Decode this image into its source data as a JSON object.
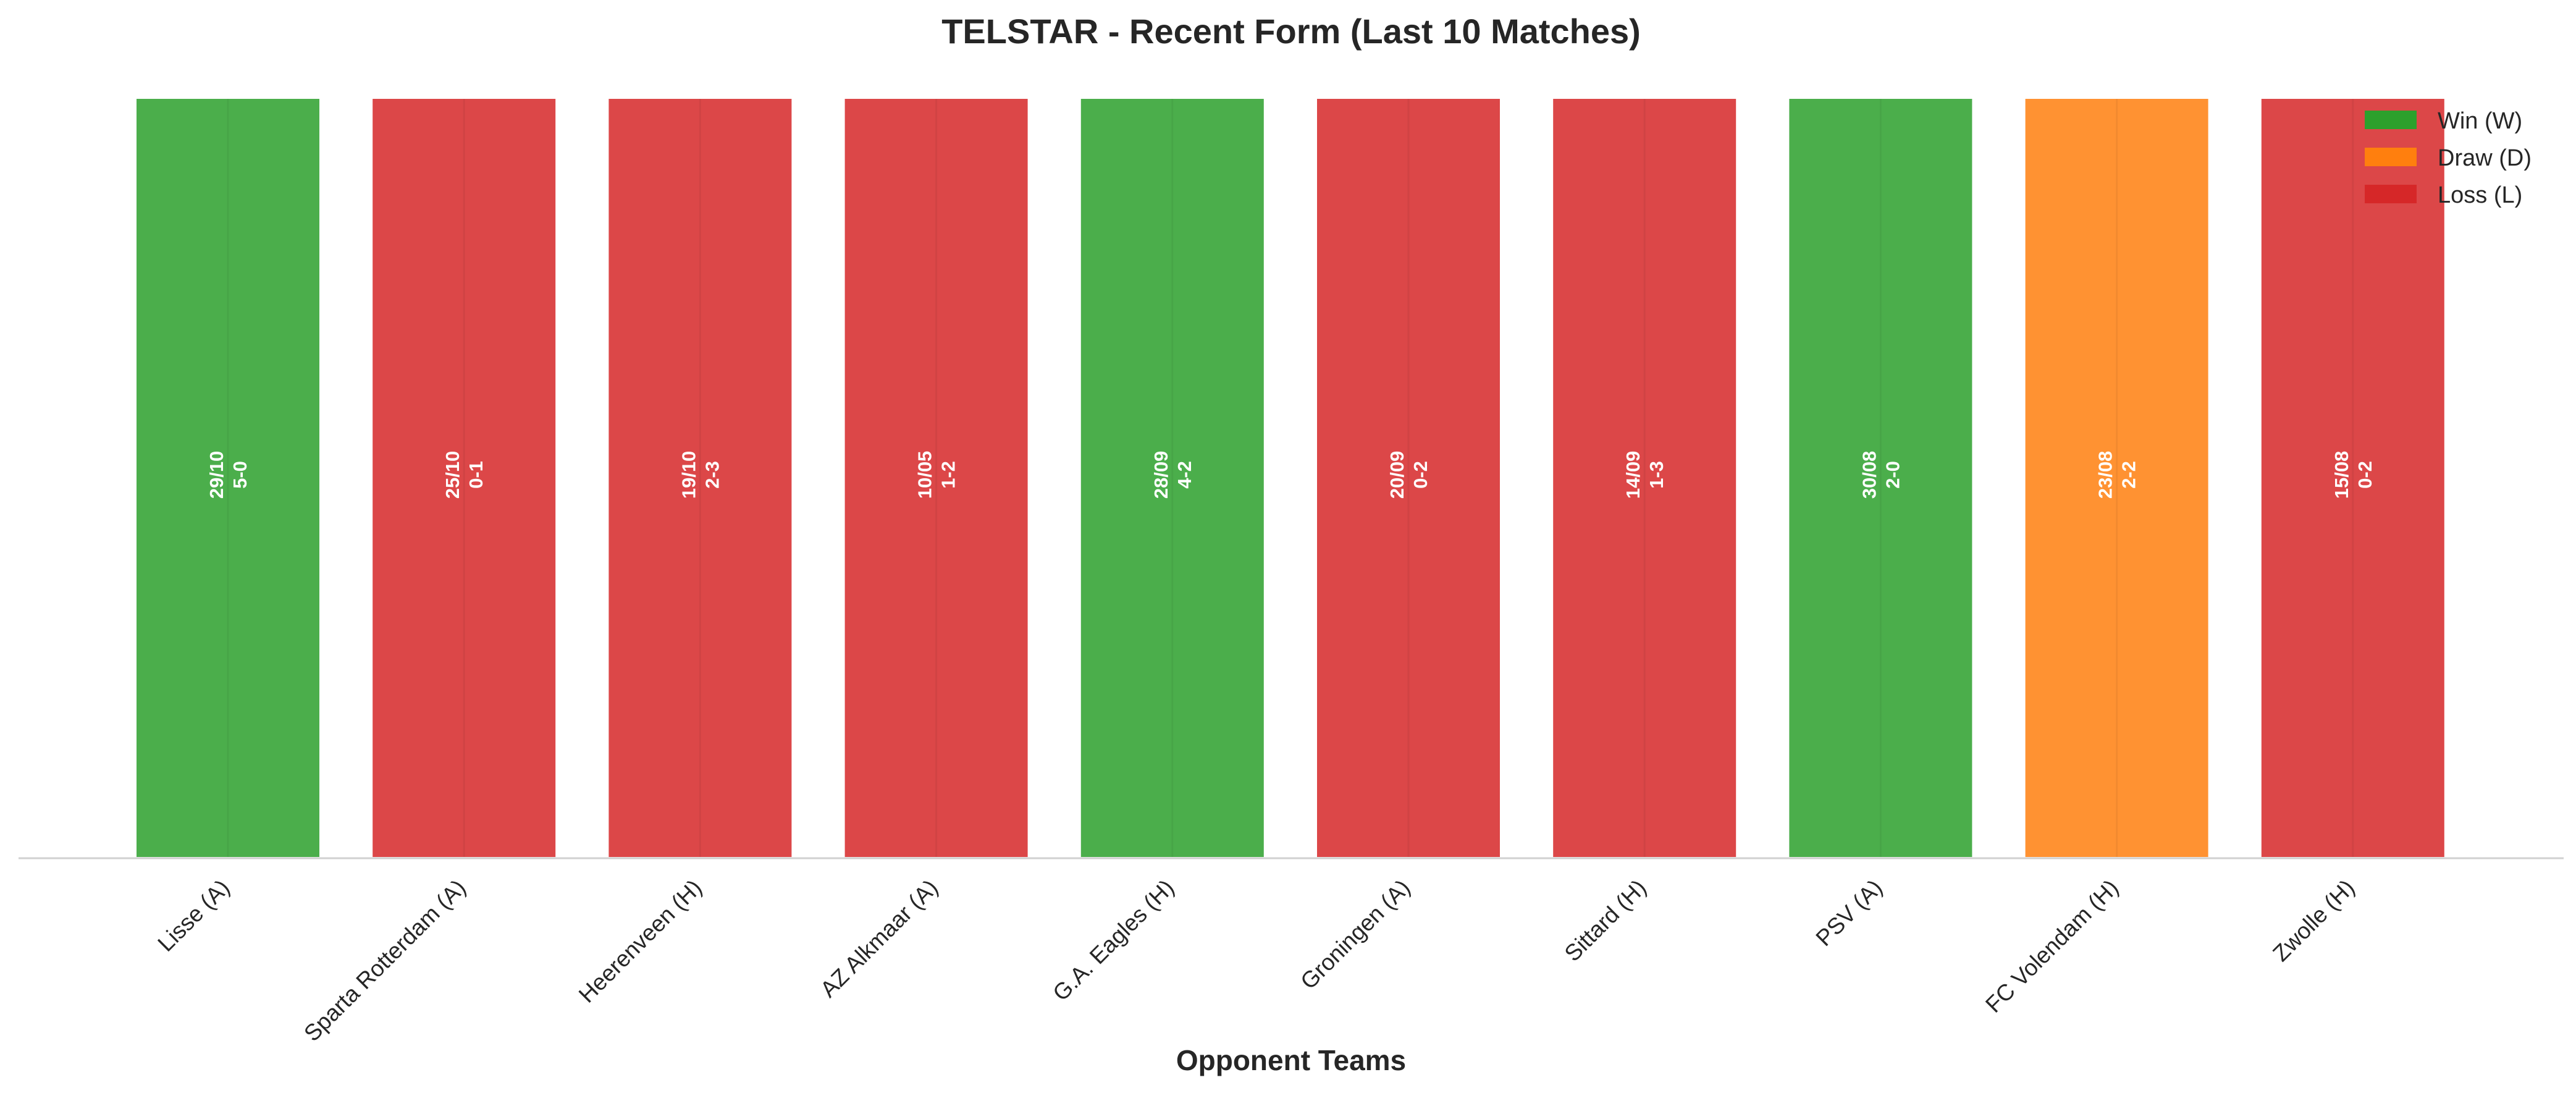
{
  "chart_data": {
    "type": "bar",
    "title": "TELSTAR - Recent Form (Last 10 Matches)",
    "xlabel": "Opponent Teams",
    "ylabel": "",
    "ylim": [
      0,
      1
    ],
    "grid": false,
    "legend_position": "top-right",
    "categories": [
      "Lisse (A)",
      "Sparta Rotterdam (A)",
      "Heerenveen (H)",
      "AZ Alkmaar (A)",
      "G.A. Eagles (H)",
      "Groningen (A)",
      "Sittard (H)",
      "PSV (A)",
      "FC Volendam (H)",
      "Zwolle (H)"
    ],
    "values": [
      1,
      1,
      1,
      1,
      1,
      1,
      1,
      1,
      1,
      1
    ],
    "results": [
      "W",
      "L",
      "L",
      "L",
      "W",
      "L",
      "L",
      "W",
      "D",
      "L"
    ],
    "dates": [
      "29/10",
      "25/10",
      "19/10",
      "10/05",
      "28/09",
      "20/09",
      "14/09",
      "30/08",
      "23/08",
      "15/08"
    ],
    "scores": [
      "5-0",
      "0-1",
      "2-3",
      "1-2",
      "4-2",
      "0-2",
      "1-3",
      "2-0",
      "2-2",
      "0-2"
    ],
    "legend": [
      {
        "key": "W",
        "label": "Win (W)",
        "color": "#2ca02c"
      },
      {
        "key": "D",
        "label": "Draw (D)",
        "color": "#ff7f0e"
      },
      {
        "key": "L",
        "label": "Loss (L)",
        "color": "#d62728"
      }
    ]
  }
}
